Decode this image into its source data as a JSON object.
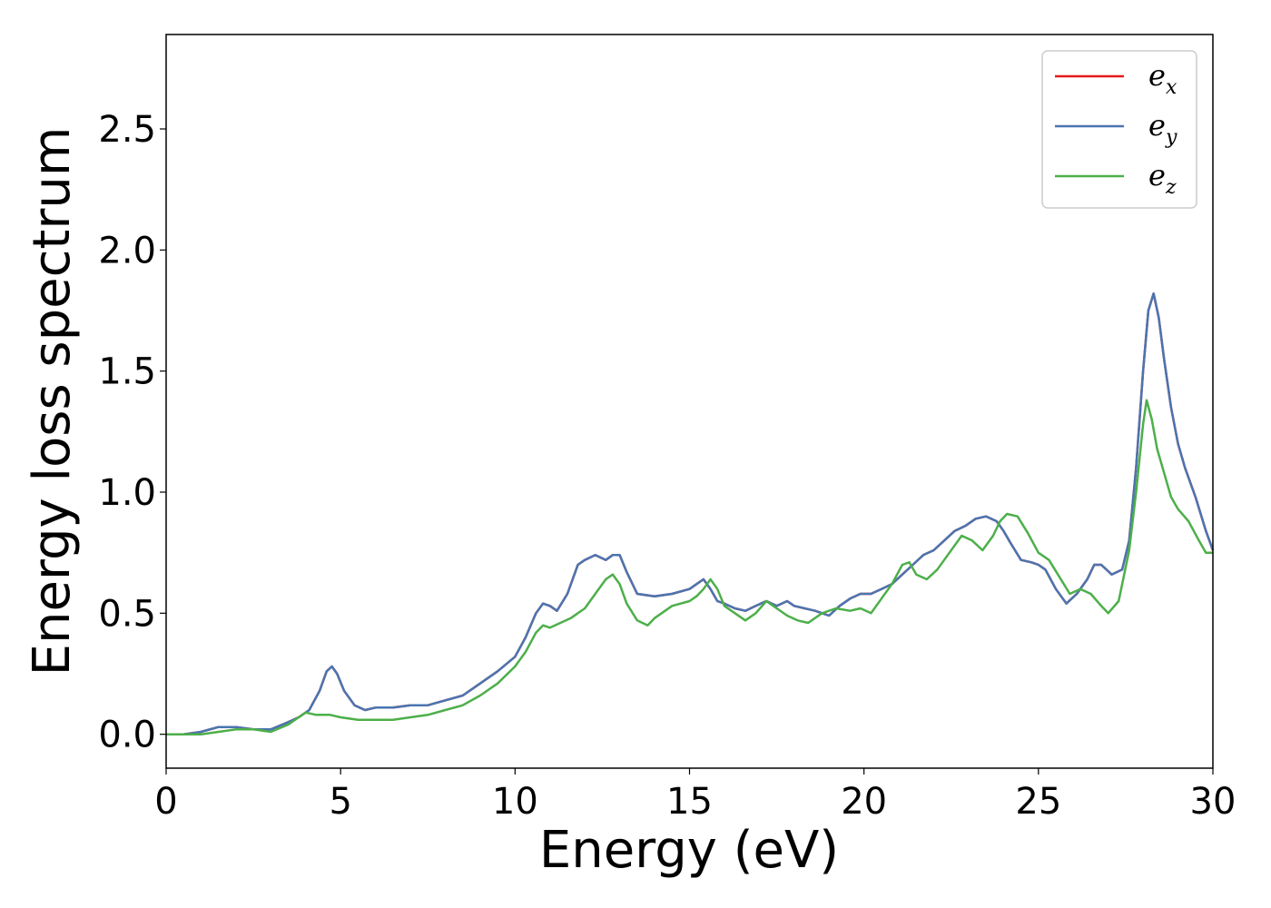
{
  "chart_data": {
    "type": "line",
    "title": "",
    "xlabel": "Energy (eV)",
    "ylabel": "Energy loss spectrum",
    "xlim": [
      0,
      30
    ],
    "ylim": [
      -0.14,
      2.89
    ],
    "xticks": [
      0,
      5,
      10,
      15,
      20,
      25,
      30
    ],
    "xtick_labels": [
      "0",
      "5",
      "10",
      "15",
      "20",
      "25",
      "30"
    ],
    "yticks": [
      0.0,
      0.5,
      1.0,
      1.5,
      2.0,
      2.5
    ],
    "ytick_labels": [
      "0.0",
      "0.5",
      "1.0",
      "1.5",
      "2.0",
      "2.5"
    ],
    "grid": false,
    "legend_position": "top-right",
    "series": [
      {
        "name": "e",
        "subscript": "x",
        "color": "#e41a1c",
        "x": [
          0,
          0.5,
          1,
          1.5,
          2,
          2.5,
          3,
          3.5,
          3.8,
          4.1,
          4.4,
          4.6,
          4.75,
          4.9,
          5.1,
          5.4,
          5.7,
          6,
          6.5,
          7,
          7.5,
          8,
          8.5,
          9,
          9.5,
          10,
          10.3,
          10.6,
          10.8,
          11,
          11.2,
          11.5,
          11.8,
          12,
          12.3,
          12.6,
          12.8,
          13,
          13.2,
          13.5,
          14,
          14.5,
          15,
          15.2,
          15.4,
          15.6,
          15.8,
          16,
          16.3,
          16.6,
          16.9,
          17.2,
          17.5,
          17.8,
          18,
          18.3,
          18.6,
          19,
          19.3,
          19.6,
          19.9,
          20.2,
          20.5,
          20.8,
          21.1,
          21.4,
          21.7,
          22,
          22.3,
          22.6,
          22.9,
          23.2,
          23.5,
          23.8,
          24,
          24.2,
          24.5,
          24.8,
          25,
          25.2,
          25.5,
          25.8,
          26.1,
          26.4,
          26.6,
          26.8,
          27.1,
          27.4,
          27.6,
          27.8,
          28,
          28.15,
          28.3,
          28.45,
          28.6,
          28.8,
          29,
          29.2,
          29.5,
          29.8,
          30
        ],
        "y": [
          0,
          0,
          0.01,
          0.03,
          0.03,
          0.02,
          0.02,
          0.05,
          0.07,
          0.1,
          0.18,
          0.26,
          0.28,
          0.25,
          0.18,
          0.12,
          0.1,
          0.11,
          0.11,
          0.12,
          0.12,
          0.14,
          0.16,
          0.21,
          0.26,
          0.32,
          0.4,
          0.5,
          0.54,
          0.53,
          0.51,
          0.58,
          0.7,
          0.72,
          0.74,
          0.72,
          0.74,
          0.74,
          0.67,
          0.58,
          0.57,
          0.58,
          0.6,
          0.62,
          0.64,
          0.6,
          0.55,
          0.54,
          0.52,
          0.51,
          0.53,
          0.55,
          0.53,
          0.55,
          0.53,
          0.52,
          0.51,
          0.49,
          0.53,
          0.56,
          0.58,
          0.58,
          0.6,
          0.62,
          0.66,
          0.7,
          0.74,
          0.76,
          0.8,
          0.84,
          0.86,
          0.89,
          0.9,
          0.88,
          0.84,
          0.79,
          0.72,
          0.71,
          0.7,
          0.68,
          0.6,
          0.54,
          0.58,
          0.64,
          0.7,
          0.7,
          0.66,
          0.68,
          0.8,
          1.1,
          1.5,
          1.75,
          1.82,
          1.72,
          1.55,
          1.35,
          1.2,
          1.1,
          0.98,
          0.84,
          0.76
        ]
      },
      {
        "name": "e",
        "subscript": "y",
        "color": "#4a75b0",
        "x": [
          0,
          0.5,
          1,
          1.5,
          2,
          2.5,
          3,
          3.5,
          3.8,
          4.1,
          4.4,
          4.6,
          4.75,
          4.9,
          5.1,
          5.4,
          5.7,
          6,
          6.5,
          7,
          7.5,
          8,
          8.5,
          9,
          9.5,
          10,
          10.3,
          10.6,
          10.8,
          11,
          11.2,
          11.5,
          11.8,
          12,
          12.3,
          12.6,
          12.8,
          13,
          13.2,
          13.5,
          14,
          14.5,
          15,
          15.2,
          15.4,
          15.6,
          15.8,
          16,
          16.3,
          16.6,
          16.9,
          17.2,
          17.5,
          17.8,
          18,
          18.3,
          18.6,
          19,
          19.3,
          19.6,
          19.9,
          20.2,
          20.5,
          20.8,
          21.1,
          21.4,
          21.7,
          22,
          22.3,
          22.6,
          22.9,
          23.2,
          23.5,
          23.8,
          24,
          24.2,
          24.5,
          24.8,
          25,
          25.2,
          25.5,
          25.8,
          26.1,
          26.4,
          26.6,
          26.8,
          27.1,
          27.4,
          27.6,
          27.8,
          28,
          28.15,
          28.3,
          28.45,
          28.6,
          28.8,
          29,
          29.2,
          29.5,
          29.8,
          30
        ],
        "y": [
          0,
          0,
          0.01,
          0.03,
          0.03,
          0.02,
          0.02,
          0.05,
          0.07,
          0.1,
          0.18,
          0.26,
          0.28,
          0.25,
          0.18,
          0.12,
          0.1,
          0.11,
          0.11,
          0.12,
          0.12,
          0.14,
          0.16,
          0.21,
          0.26,
          0.32,
          0.4,
          0.5,
          0.54,
          0.53,
          0.51,
          0.58,
          0.7,
          0.72,
          0.74,
          0.72,
          0.74,
          0.74,
          0.67,
          0.58,
          0.57,
          0.58,
          0.6,
          0.62,
          0.64,
          0.6,
          0.55,
          0.54,
          0.52,
          0.51,
          0.53,
          0.55,
          0.53,
          0.55,
          0.53,
          0.52,
          0.51,
          0.49,
          0.53,
          0.56,
          0.58,
          0.58,
          0.6,
          0.62,
          0.66,
          0.7,
          0.74,
          0.76,
          0.8,
          0.84,
          0.86,
          0.89,
          0.9,
          0.88,
          0.84,
          0.79,
          0.72,
          0.71,
          0.7,
          0.68,
          0.6,
          0.54,
          0.58,
          0.64,
          0.7,
          0.7,
          0.66,
          0.68,
          0.8,
          1.1,
          1.5,
          1.75,
          1.82,
          1.72,
          1.55,
          1.35,
          1.2,
          1.1,
          0.98,
          0.84,
          0.76
        ]
      },
      {
        "name": "e",
        "subscript": "z",
        "color": "#4daf4a",
        "x": [
          0,
          0.5,
          1,
          1.5,
          2,
          2.5,
          3,
          3.5,
          3.8,
          4,
          4.3,
          4.7,
          5,
          5.5,
          6,
          6.5,
          7,
          7.5,
          8,
          8.5,
          9,
          9.5,
          10,
          10.3,
          10.6,
          10.8,
          11,
          11.3,
          11.6,
          12,
          12.3,
          12.6,
          12.8,
          13,
          13.2,
          13.5,
          13.8,
          14,
          14.5,
          15,
          15.2,
          15.4,
          15.6,
          15.8,
          16,
          16.3,
          16.6,
          16.9,
          17.2,
          17.5,
          17.8,
          18.1,
          18.4,
          18.8,
          19.2,
          19.6,
          19.9,
          20.2,
          20.5,
          20.8,
          21.1,
          21.3,
          21.5,
          21.8,
          22.1,
          22.4,
          22.8,
          23.1,
          23.4,
          23.7,
          23.9,
          24.1,
          24.4,
          24.7,
          25,
          25.3,
          25.6,
          25.9,
          26.2,
          26.5,
          26.8,
          27,
          27.3,
          27.6,
          27.8,
          28,
          28.1,
          28.25,
          28.4,
          28.6,
          28.8,
          29,
          29.3,
          29.6,
          29.8,
          30
        ],
        "y": [
          0,
          0,
          0,
          0.01,
          0.02,
          0.02,
          0.01,
          0.04,
          0.07,
          0.09,
          0.08,
          0.08,
          0.07,
          0.06,
          0.06,
          0.06,
          0.07,
          0.08,
          0.1,
          0.12,
          0.16,
          0.21,
          0.28,
          0.34,
          0.42,
          0.45,
          0.44,
          0.46,
          0.48,
          0.52,
          0.58,
          0.64,
          0.66,
          0.62,
          0.54,
          0.47,
          0.45,
          0.48,
          0.53,
          0.55,
          0.57,
          0.6,
          0.64,
          0.6,
          0.53,
          0.5,
          0.47,
          0.5,
          0.55,
          0.52,
          0.49,
          0.47,
          0.46,
          0.5,
          0.52,
          0.51,
          0.52,
          0.5,
          0.56,
          0.62,
          0.7,
          0.71,
          0.66,
          0.64,
          0.68,
          0.74,
          0.82,
          0.8,
          0.76,
          0.82,
          0.88,
          0.91,
          0.9,
          0.83,
          0.75,
          0.72,
          0.65,
          0.58,
          0.6,
          0.58,
          0.53,
          0.5,
          0.55,
          0.76,
          1.0,
          1.28,
          1.38,
          1.3,
          1.18,
          1.08,
          0.98,
          0.93,
          0.88,
          0.8,
          0.75,
          0.75
        ]
      }
    ]
  }
}
